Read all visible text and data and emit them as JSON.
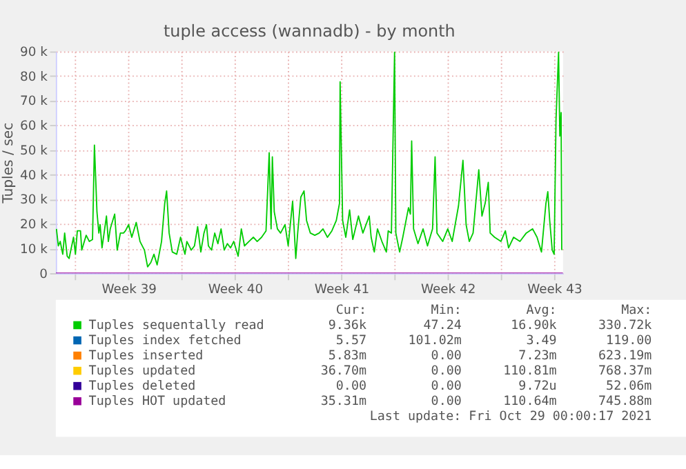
{
  "chart_data": {
    "type": "line",
    "title": "tuple access (wannadb) - by month",
    "ylabel": "Tuples / sec",
    "xlim": [
      "2021-09-25T17:00",
      "2021-10-29T02:00"
    ],
    "ylim": [
      0,
      90000
    ],
    "xticks": [
      {
        "value": "2021-09-27T00:00",
        "label": null
      },
      {
        "value": "2021-09-30T12:00",
        "label": "Week 39"
      },
      {
        "value": "2021-10-04T00:00",
        "label": null
      },
      {
        "value": "2021-10-07T12:00",
        "label": "Week 40"
      },
      {
        "value": "2021-10-11T00:00",
        "label": null
      },
      {
        "value": "2021-10-14T12:00",
        "label": "Week 41"
      },
      {
        "value": "2021-10-18T00:00",
        "label": null
      },
      {
        "value": "2021-10-21T12:00",
        "label": "Week 42"
      },
      {
        "value": "2021-10-25T00:00",
        "label": null
      },
      {
        "value": "2021-10-28T12:00",
        "label": "Week 43"
      }
    ],
    "yticks": [
      0,
      {
        "value": 10000,
        "label": "10 k"
      },
      {
        "value": 20000,
        "label": "20 k"
      },
      {
        "value": 30000,
        "label": "30 k"
      },
      {
        "value": 40000,
        "label": "40 k"
      },
      {
        "value": 50000,
        "label": "50 k"
      },
      {
        "value": 60000,
        "label": "60 k"
      },
      {
        "value": 70000,
        "label": "70 k"
      },
      {
        "value": 80000,
        "label": "80 k"
      },
      {
        "value": 90000,
        "label": "90 k"
      }
    ],
    "grid": true,
    "legend": "bottom",
    "marker": "none",
    "line_style": "solid",
    "series": [
      {
        "name": "Tuples sequentally read",
        "color": "#00cc00",
        "x": [
          "2021-09-25T18:00",
          "2021-09-25T21:00",
          "2021-09-26T00:00",
          "2021-09-26T04:00",
          "2021-09-26T07:00",
          "2021-09-26T11:00",
          "2021-09-26T14:00",
          "2021-09-26T21:00",
          "2021-09-27T00:00",
          "2021-09-27T03:00",
          "2021-09-27T08:00",
          "2021-09-27T10:00",
          "2021-09-27T17:00",
          "2021-09-27T22:00",
          "2021-09-28T03:00",
          "2021-09-28T06:00",
          "2021-09-28T10:00",
          "2021-09-28T13:00",
          "2021-09-28T15:00",
          "2021-09-28T18:00",
          "2021-09-29T01:00",
          "2021-09-29T04:00",
          "2021-09-29T07:00",
          "2021-09-29T14:00",
          "2021-09-29T18:00",
          "2021-09-29T23:00",
          "2021-09-30T04:00",
          "2021-09-30T07:00",
          "2021-09-30T12:00",
          "2021-09-30T17:00",
          "2021-10-01T00:00",
          "2021-10-01T06:00",
          "2021-10-01T13:00",
          "2021-10-01T18:00",
          "2021-10-01T23:00",
          "2021-10-02T04:00",
          "2021-10-02T09:00",
          "2021-10-02T16:00",
          "2021-10-02T21:00",
          "2021-10-03T00:00",
          "2021-10-03T04:00",
          "2021-10-03T09:00",
          "2021-10-03T16:00",
          "2021-10-03T22:00",
          "2021-10-04T05:00",
          "2021-10-04T08:00",
          "2021-10-04T15:00",
          "2021-10-04T20:00",
          "2021-10-05T01:00",
          "2021-10-05T06:00",
          "2021-10-05T11:00",
          "2021-10-05T15:00",
          "2021-10-05T18:00",
          "2021-10-05T23:00",
          "2021-10-06T04:00",
          "2021-10-06T09:00",
          "2021-10-06T14:00",
          "2021-10-06T19:00",
          "2021-10-07T00:00",
          "2021-10-07T05:00",
          "2021-10-07T10:00",
          "2021-10-07T17:00",
          "2021-10-07T22:00",
          "2021-10-08T03:00",
          "2021-10-08T10:00",
          "2021-10-08T17:00",
          "2021-10-08T23:00",
          "2021-10-09T06:00",
          "2021-10-09T13:00",
          "2021-10-09T18:00",
          "2021-10-09T21:00",
          "2021-10-09T23:00",
          "2021-10-10T02:00",
          "2021-10-10T07:00",
          "2021-10-10T12:00",
          "2021-10-10T19:00",
          "2021-10-11T00:00",
          "2021-10-11T07:00",
          "2021-10-11T12:00",
          "2021-10-11T15:00",
          "2021-10-11T20:00",
          "2021-10-12T01:00",
          "2021-10-12T05:00",
          "2021-10-12T11:00",
          "2021-10-12T18:00",
          "2021-10-13T01:00",
          "2021-10-13T07:00",
          "2021-10-13T14:00",
          "2021-10-13T21:00",
          "2021-10-14T04:00",
          "2021-10-14T09:00",
          "2021-10-14T10:00",
          "2021-10-14T14:00",
          "2021-10-14T19:00",
          "2021-10-15T01:00",
          "2021-10-15T06:00",
          "2021-10-15T15:00",
          "2021-10-15T22:00",
          "2021-10-16T08:00",
          "2021-10-16T11:00",
          "2021-10-16T16:00",
          "2021-10-16T21:00",
          "2021-10-17T04:00",
          "2021-10-17T11:00",
          "2021-10-17T14:00",
          "2021-10-17T19:00",
          "2021-10-18T00:00",
          "2021-10-18T02:00",
          "2021-10-18T08:00",
          "2021-10-18T13:00",
          "2021-10-18T22:00",
          "2021-10-19T01:00",
          "2021-10-19T03:00",
          "2021-10-19T06:00",
          "2021-10-19T13:00",
          "2021-10-19T21:00",
          "2021-10-20T04:00",
          "2021-10-20T12:00",
          "2021-10-20T16:00",
          "2021-10-20T19:00",
          "2021-10-21T04:00",
          "2021-10-21T12:00",
          "2021-10-21T19:00",
          "2021-10-22T05:00",
          "2021-10-22T12:00",
          "2021-10-22T17:00",
          "2021-10-22T22:00",
          "2021-10-23T04:00",
          "2021-10-23T13:00",
          "2021-10-23T18:00",
          "2021-10-23T23:00",
          "2021-10-24T04:00",
          "2021-10-24T07:00",
          "2021-10-24T14:00",
          "2021-10-25T00:00",
          "2021-10-25T07:00",
          "2021-10-25T12:00",
          "2021-10-25T20:00",
          "2021-10-26T06:00",
          "2021-10-26T16:00",
          "2021-10-27T02:00",
          "2021-10-27T09:00",
          "2021-10-27T16:00",
          "2021-10-27T23:00",
          "2021-10-28T02:00",
          "2021-10-28T05:00",
          "2021-10-28T09:00",
          "2021-10-28T12:00",
          "2021-10-28T15:00",
          "2021-10-28T19:00",
          "2021-10-28T21:00",
          "2021-10-28T23:00",
          "2021-10-29T00:00"
        ],
        "values": [
          18000,
          11100,
          12900,
          7700,
          16300,
          6900,
          6000,
          14600,
          7700,
          17200,
          17200,
          9400,
          15400,
          12900,
          13700,
          52000,
          24900,
          16300,
          19700,
          10300,
          23200,
          12900,
          18000,
          24000,
          9400,
          16300,
          16300,
          17200,
          19700,
          14600,
          20600,
          12900,
          9400,
          2600,
          4300,
          7700,
          3400,
          12900,
          28300,
          33400,
          16300,
          8600,
          7700,
          14600,
          7700,
          12900,
          9400,
          11100,
          18900,
          8600,
          16300,
          19700,
          11100,
          9400,
          16300,
          12000,
          18000,
          9400,
          12000,
          10300,
          12900,
          6900,
          18000,
          11100,
          12900,
          14600,
          12900,
          14600,
          17200,
          48900,
          18000,
          47200,
          24900,
          18000,
          16300,
          19700,
          11100,
          29200,
          6000,
          16300,
          30900,
          33400,
          21400,
          16300,
          15400,
          16300,
          18000,
          14600,
          17200,
          21400,
          28300,
          77700,
          21400,
          14600,
          25700,
          13700,
          23200,
          16300,
          23200,
          14600,
          8600,
          18000,
          12900,
          8600,
          17200,
          16300,
          89700,
          16300,
          8600,
          14600,
          26600,
          24000,
          53700,
          18000,
          12000,
          18000,
          11100,
          18000,
          47200,
          16300,
          12900,
          18000,
          12900,
          27400,
          45800,
          19700,
          12900,
          16300,
          42000,
          23200,
          28300,
          36900,
          16300,
          14600,
          12900,
          17200,
          10300,
          14600,
          12900,
          16300,
          18000,
          14600,
          8600,
          28300,
          33100,
          21400,
          9400,
          7700,
          62600,
          89700,
          55700,
          65200,
          9400
        ]
      },
      {
        "name": "Tuples index fetched",
        "color": "#0066b3"
      },
      {
        "name": "Tuples inserted",
        "color": "#ff8000"
      },
      {
        "name": "Tuples updated",
        "color": "#ffcc00"
      },
      {
        "name": "Tuples deleted",
        "color": "#330099"
      },
      {
        "name": "Tuples HOT updated",
        "color": "#990099",
        "x": [
          "2021-09-25T17:00",
          "2021-10-29T02:00"
        ],
        "values": [
          0,
          0
        ]
      }
    ],
    "annotations": [
      "Cur:",
      "Min:",
      "Avg:",
      "Max:",
      "9.36k",
      "47.24",
      "16.90k",
      "330.72k",
      "5.57",
      "101.02m",
      "3.49",
      "119.00",
      "5.83m",
      "0.00",
      "7.23m",
      "623.19m",
      "36.70m",
      "0.00",
      "110.81m",
      "768.37m",
      "0.00",
      "0.00",
      "9.72u",
      "52.06m",
      "35.31m",
      "0.00",
      "110.64m",
      "745.88m",
      "Last update: Fri Oct 29 00:00:17 2021"
    ]
  }
}
